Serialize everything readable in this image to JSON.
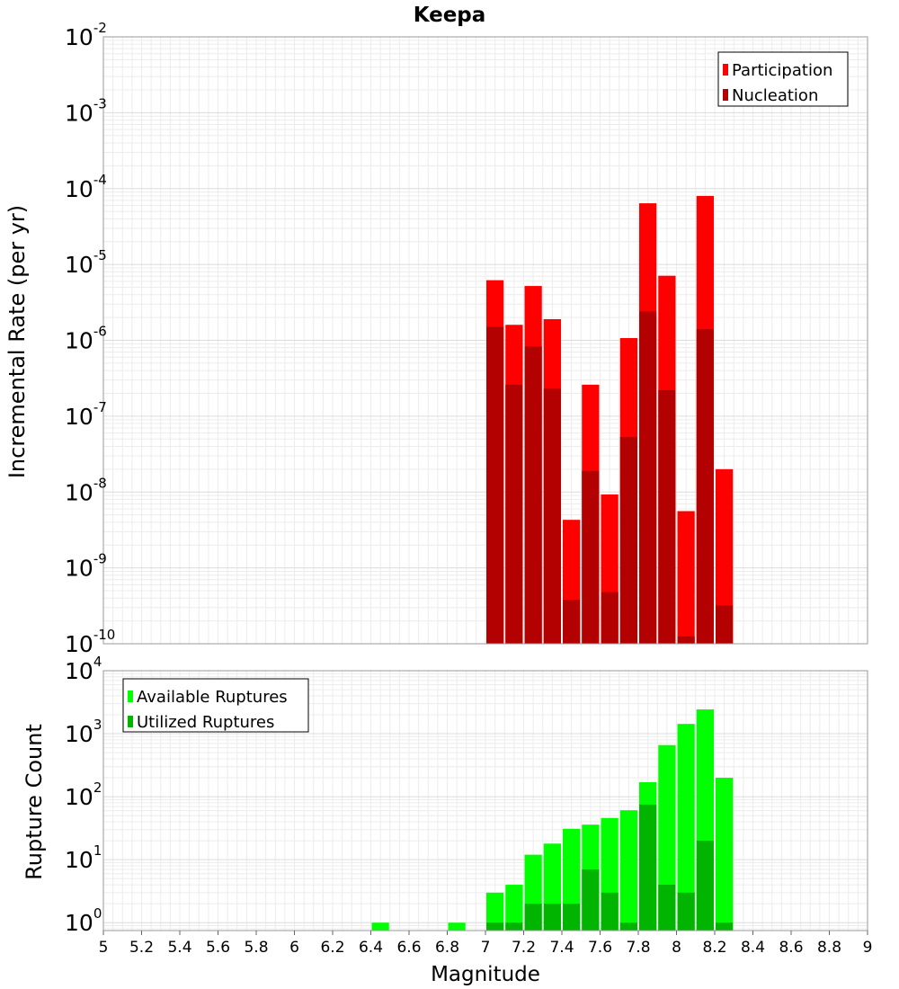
{
  "chart_data": [
    {
      "type": "bar",
      "title": "Keepa",
      "xlabel": "",
      "ylabel": "Incremental Rate (per yr)",
      "xlim": [
        5,
        9
      ],
      "ylim": [
        1e-10,
        0.01
      ],
      "yscale": "log",
      "grid": true,
      "legend_position": "top-right",
      "bin_width": 0.1,
      "x": [
        7.05,
        7.15,
        7.25,
        7.35,
        7.45,
        7.55,
        7.65,
        7.75,
        7.85,
        7.95,
        8.05,
        8.15,
        8.25
      ],
      "series": [
        {
          "name": "Participation",
          "color": "#ff0000",
          "values": [
            6.2e-06,
            1.6e-06,
            5.2e-06,
            1.9e-06,
            4.3e-09,
            2.6e-07,
            9.3e-09,
            1.07e-06,
            6.4e-05,
            7.1e-06,
            5.6e-09,
            8e-05,
            2e-08
          ]
        },
        {
          "name": "Nucleation",
          "color": "#b30000",
          "values": [
            1.5e-06,
            2.6e-07,
            8.3e-07,
            2.3e-07,
            3.8e-10,
            1.9e-08,
            4.8e-10,
            5.3e-08,
            2.4e-06,
            2.2e-07,
            1.25e-10,
            1.4e-06,
            3.2e-10
          ]
        }
      ],
      "yticks": [
        {
          "base": "10",
          "exp": "-2"
        },
        {
          "base": "10",
          "exp": "-3"
        },
        {
          "base": "10",
          "exp": "-4"
        },
        {
          "base": "10",
          "exp": "-5"
        },
        {
          "base": "10",
          "exp": "-6"
        },
        {
          "base": "10",
          "exp": "-7"
        },
        {
          "base": "10",
          "exp": "-8"
        },
        {
          "base": "10",
          "exp": "-9"
        },
        {
          "base": "10",
          "exp": "-10"
        }
      ]
    },
    {
      "type": "bar",
      "title": "",
      "xlabel": "Magnitude",
      "ylabel": "Rupture Count",
      "xlim": [
        5,
        9
      ],
      "ylim": [
        0.75,
        10000
      ],
      "yscale": "log",
      "grid": true,
      "legend_position": "top-left",
      "bin_width": 0.1,
      "x": [
        6.45,
        6.85,
        7.05,
        7.15,
        7.25,
        7.35,
        7.45,
        7.55,
        7.65,
        7.75,
        7.85,
        7.95,
        8.05,
        8.15,
        8.25
      ],
      "series": [
        {
          "name": "Available Ruptures",
          "color": "#00ff00",
          "values": [
            1,
            1,
            3,
            4,
            12,
            18,
            31,
            36,
            46,
            61,
            170,
            660,
            1430,
            2430,
            200
          ]
        },
        {
          "name": "Utilized Ruptures",
          "color": "#00b400",
          "values": [
            0,
            0,
            1,
            1,
            2,
            2,
            2,
            7,
            3,
            1,
            75,
            4,
            3,
            20,
            1
          ]
        }
      ],
      "yticks": [
        {
          "base": "10",
          "exp": "4"
        },
        {
          "base": "10",
          "exp": "3"
        },
        {
          "base": "10",
          "exp": "2"
        },
        {
          "base": "10",
          "exp": "1"
        },
        {
          "base": "10",
          "exp": "0"
        }
      ],
      "xticks": [
        "5",
        "5.2",
        "5.4",
        "5.6",
        "5.8",
        "6",
        "6.2",
        "6.4",
        "6.6",
        "6.8",
        "7",
        "7.2",
        "7.4",
        "7.6",
        "7.8",
        "8",
        "8.2",
        "8.4",
        "8.6",
        "8.8",
        "9"
      ]
    }
  ]
}
